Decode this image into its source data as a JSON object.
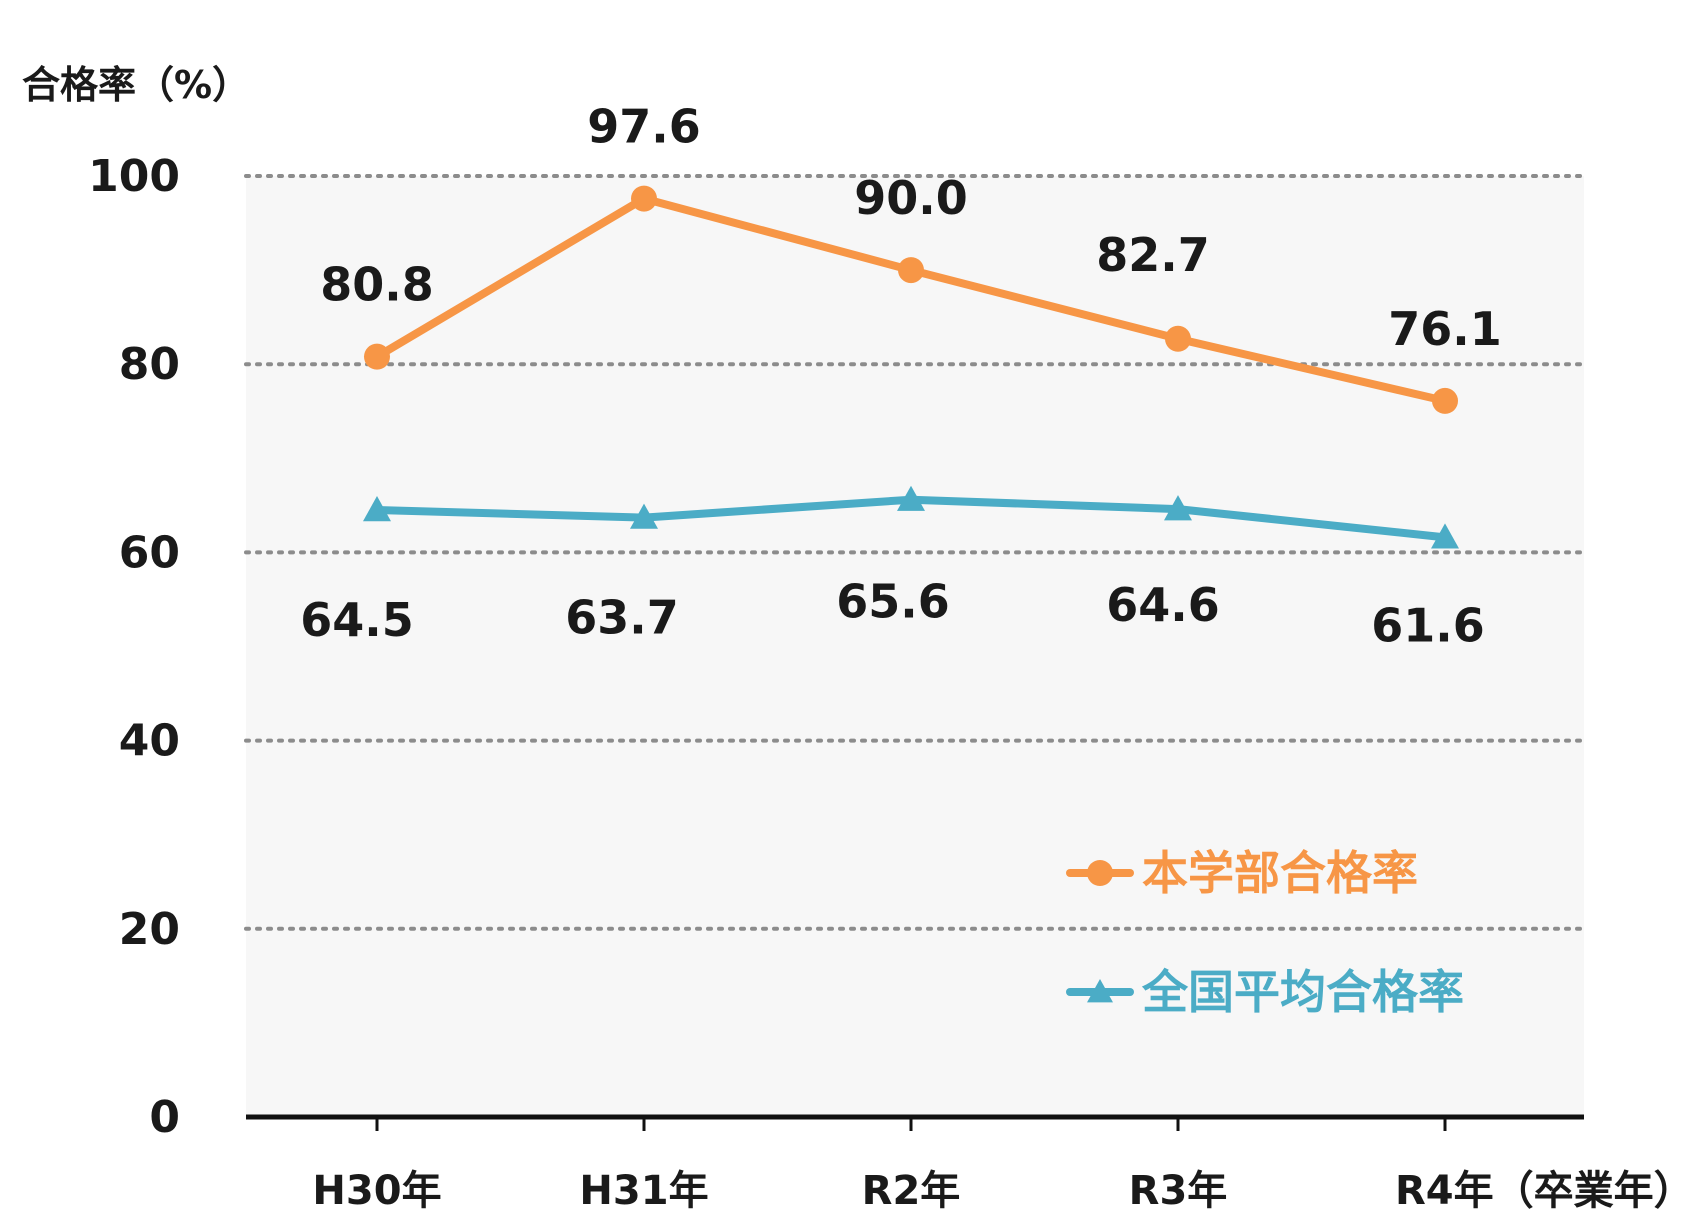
{
  "chart_data": {
    "type": "line",
    "ylabel": "合格率（%）",
    "xlabel": "",
    "categories": [
      "H30年",
      "H31年",
      "R2年",
      "R3年",
      "R4年（卒業年）"
    ],
    "ylim": [
      0,
      100
    ],
    "yticks": [
      0,
      20,
      40,
      60,
      80,
      100
    ],
    "grid": true,
    "legend_position": "lower-right",
    "series": [
      {
        "name": "本学部合格率",
        "values": [
          80.8,
          97.6,
          90.0,
          82.7,
          76.1
        ],
        "labels": [
          "80.8",
          "97.6",
          "90.0",
          "82.7",
          "76.1"
        ],
        "color": "#F79646",
        "marker": "circle"
      },
      {
        "name": "全国平均合格率",
        "values": [
          64.5,
          63.7,
          65.6,
          64.6,
          61.6
        ],
        "labels": [
          "64.5",
          "63.7",
          "65.6",
          "64.6",
          "61.6"
        ],
        "color": "#4BACC6",
        "marker": "triangle"
      }
    ]
  }
}
